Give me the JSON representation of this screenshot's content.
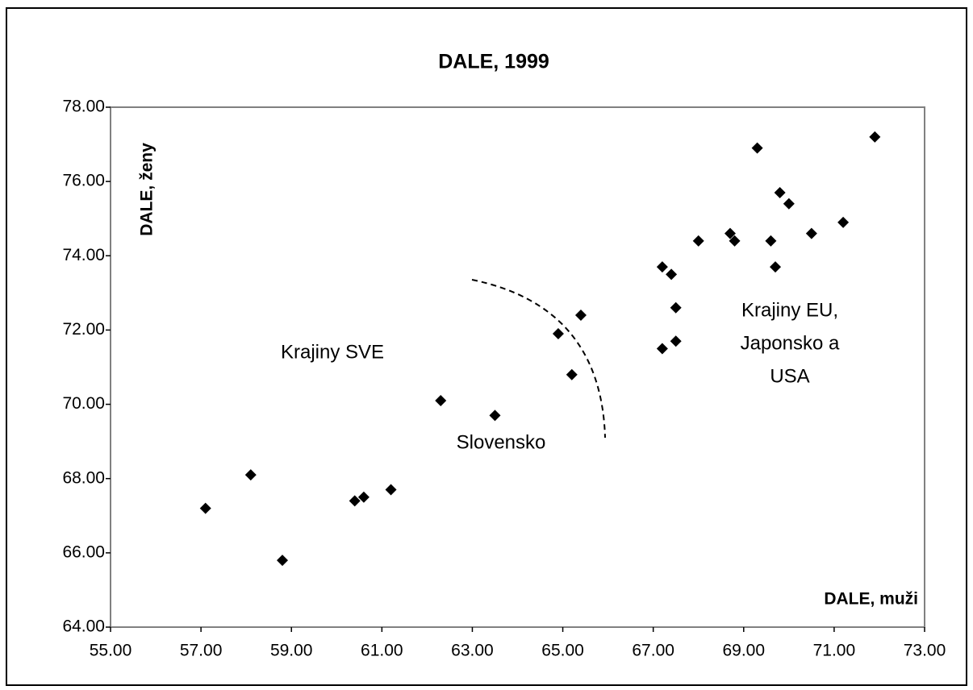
{
  "chart_data": {
    "type": "scatter",
    "title": "DALE, 1999",
    "x_label": "DALE, muži",
    "y_label": "DALE, ženy",
    "annotations": [
      "Krajiny SVE",
      "Slovensko",
      [
        "Krajiny EU,",
        "Japonsko a",
        "USA"
      ]
    ],
    "color": "#000000",
    "x": [
      57.1,
      58.1,
      58.8,
      60.4,
      60.6,
      61.2,
      62.3,
      63.5,
      64.9,
      65.2,
      65.4,
      67.2,
      67.4,
      67.5,
      67.5,
      67.2,
      68.0,
      68.7,
      68.8,
      69.3,
      69.8,
      70.0,
      69.6,
      69.7,
      70.5,
      71.2,
      71.9
    ],
    "values": [
      67.2,
      68.1,
      65.8,
      67.4,
      67.5,
      67.7,
      70.1,
      69.7,
      71.9,
      70.8,
      72.4,
      73.7,
      73.5,
      72.6,
      71.7,
      71.5,
      74.4,
      74.6,
      74.4,
      76.9,
      75.7,
      75.4,
      74.4,
      73.7,
      74.6,
      74.9,
      77.2
    ],
    "xlim": [
      55,
      73
    ],
    "xticks": [
      {
        "value": 55,
        "label": "55.00"
      },
      {
        "value": 57,
        "label": "57.00"
      },
      {
        "value": 59,
        "label": "59.00"
      },
      {
        "value": 61,
        "label": "61.00"
      },
      {
        "value": 63,
        "label": "63.00"
      },
      {
        "value": 65,
        "label": "65.00"
      },
      {
        "value": 67,
        "label": "67.00"
      },
      {
        "value": 69,
        "label": "69.00"
      },
      {
        "value": 71,
        "label": "71.00"
      },
      {
        "value": 73,
        "label": "73.00"
      }
    ],
    "ylim": [
      64,
      78
    ],
    "yticks": [
      {
        "value": 64,
        "label": "64.00"
      },
      {
        "value": 66,
        "label": "66.00"
      },
      {
        "value": 68,
        "label": "68.00"
      },
      {
        "value": 70,
        "label": "70.00"
      },
      {
        "value": 72,
        "label": "72.00"
      },
      {
        "value": 74,
        "label": "74.00"
      },
      {
        "value": 76,
        "label": "76.00"
      },
      {
        "value": 78,
        "label": "78.00"
      }
    ]
  }
}
